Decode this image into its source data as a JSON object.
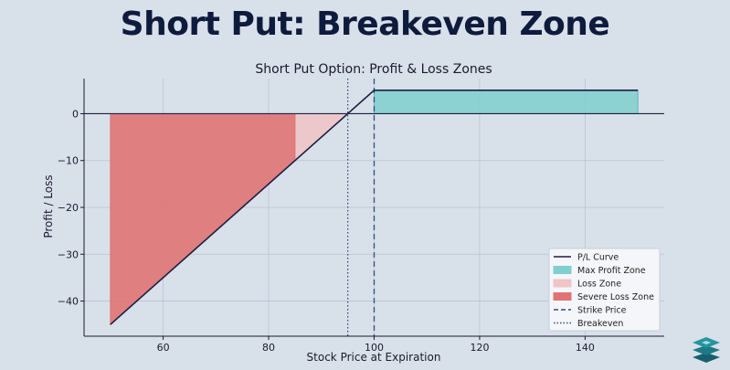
{
  "banner_title": "Short Put: Breakeven Zone",
  "colors": {
    "background": "#d8e0ea",
    "plot_bg": "#d8e0ea",
    "pl_curve": "#1c1f3f",
    "max_profit": "#7fcfcf",
    "loss_zone": "#efc5c8",
    "severe_loss": "#e07474",
    "strike": "#2d4f7c",
    "breakeven": "#2d4f7c",
    "logo": "#1d7a85"
  },
  "chart_data": {
    "type": "line",
    "title": "Short Put Option: Profit & Loss Zones",
    "xlabel": "Stock Price at Expiration",
    "ylabel": "Profit / Loss",
    "xlim": [
      45,
      155
    ],
    "ylim": [
      -47.5,
      7.5
    ],
    "xticks": [
      60,
      80,
      100,
      120,
      140
    ],
    "yticks": [
      0,
      -10,
      -20,
      -30,
      -40
    ],
    "xtick_labels": [
      "60",
      "80",
      "100",
      "120",
      "140"
    ],
    "ytick_labels": [
      "0",
      "−10",
      "−20",
      "−30",
      "−40"
    ],
    "grid": true,
    "series": [
      {
        "name": "P/L Curve",
        "x": [
          50,
          95,
          100,
          150
        ],
        "y": [
          -45,
          0,
          5,
          5
        ]
      }
    ],
    "zones": [
      {
        "name": "Max Profit Zone",
        "x_from": 100,
        "x_to": 150,
        "y_from": 0,
        "y_to": 5
      },
      {
        "name": "Loss Zone",
        "x_from": 85,
        "x_to": 95,
        "type": "between_curve_and_zero"
      },
      {
        "name": "Severe Loss Zone",
        "x_from": 50,
        "x_to": 85,
        "type": "between_curve_and_zero"
      }
    ],
    "vlines": [
      {
        "name": "Strike Price",
        "x": 100,
        "style": "dashed"
      },
      {
        "name": "Breakeven",
        "x": 95,
        "style": "dotted"
      }
    ],
    "legend": {
      "placement": "bottom-right",
      "entries": [
        "P/L Curve",
        "Max Profit Zone",
        "Loss Zone",
        "Severe Loss Zone",
        "Strike Price",
        "Breakeven"
      ]
    }
  }
}
